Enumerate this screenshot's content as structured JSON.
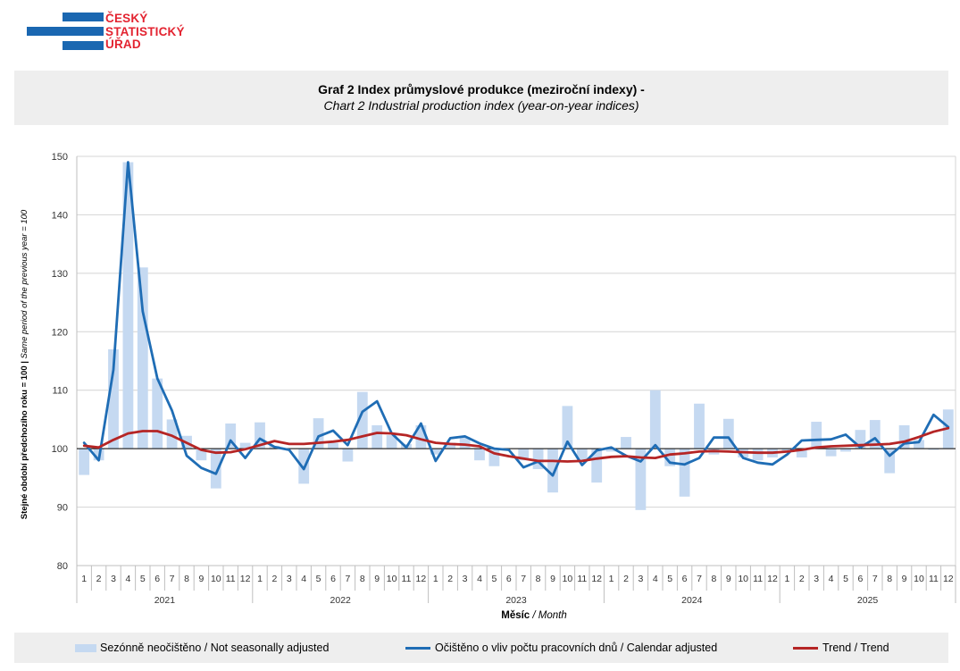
{
  "logo": {
    "line1": "ČESKÝ",
    "line2": "STATISTICKÝ",
    "line3": "ÚŘAD",
    "text_color": "#e32330",
    "bar_color": "#1a67b1"
  },
  "chart_title": "Graf 2 Index průmyslové produkce (meziroční indexy) -",
  "chart_subtitle": "Chart 2 Industrial production index (year-on-year indices)",
  "legend": {
    "bars": "Sezónně neočištěno / Not seasonally adjusted",
    "calendar": "Očištěno o vliv počtu pracovních dnů / Calendar adjusted",
    "trend": "Trend / Trend"
  },
  "chart_data": {
    "type": "bar+line",
    "title": "Graf 2 Index průmyslové produkce (meziroční indexy) -",
    "subtitle": "Chart 2 Industrial production index (year-on-year indices)",
    "ylabel_bold": "Stejné období předchozího roku = 100 |",
    "ylabel_italic": "Same period of the previous year = 100",
    "xlabel_bold": "Měsíc",
    "xlabel_italic": "/ Month",
    "ylim": [
      80,
      150
    ],
    "yticks": [
      80,
      90,
      100,
      110,
      120,
      130,
      140,
      150
    ],
    "grid": true,
    "baseline": 100,
    "years": [
      "2021",
      "2022",
      "2023",
      "2024",
      "2025"
    ],
    "months": [
      "1",
      "2",
      "3",
      "4",
      "5",
      "6",
      "7",
      "8",
      "9",
      "10",
      "11",
      "12"
    ],
    "colors": {
      "bars": "#c5d9f1",
      "calendar": "#1f6db5",
      "trend": "#b52525"
    },
    "series": [
      {
        "name": "Sezónně neočištěno / Not seasonally adjusted",
        "kind": "bar",
        "values": [
          95.5,
          98.0,
          117.0,
          149.0,
          131.0,
          112.0,
          105.0,
          102.2,
          98.0,
          93.2,
          104.3,
          101.0,
          104.5,
          100.5,
          100.0,
          94.0,
          105.2,
          101.0,
          97.8,
          109.7,
          104.0,
          102.3,
          100.8,
          104.0,
          99.0,
          101.0,
          102.0,
          98.0,
          97.0,
          100.0,
          98.0,
          96.5,
          92.5,
          107.3,
          98.0,
          94.2,
          99.5,
          102.0,
          89.5,
          110.0,
          97.0,
          91.8,
          107.7,
          99.0,
          105.1,
          98.5,
          98.0,
          98.5,
          99.5,
          98.5,
          104.6,
          98.7,
          99.5,
          103.2,
          104.9,
          95.8,
          104.0,
          101.5,
          99.8,
          106.7
        ]
      },
      {
        "name": "Očištěno o vliv počtu pracovních dnů / Calendar adjusted",
        "kind": "line",
        "values": [
          101.0,
          98.0,
          113.5,
          149.0,
          123.5,
          112.0,
          106.5,
          98.8,
          96.7,
          95.7,
          101.4,
          98.4,
          101.7,
          100.3,
          99.8,
          96.5,
          102.1,
          103.1,
          100.6,
          106.3,
          108.1,
          102.6,
          100.2,
          104.3,
          97.9,
          101.8,
          102.1,
          100.9,
          100.0,
          99.8,
          96.8,
          97.8,
          95.4,
          101.2,
          97.2,
          99.7,
          100.2,
          98.8,
          97.8,
          100.6,
          97.6,
          97.3,
          98.4,
          101.9,
          101.9,
          98.4,
          97.6,
          97.3,
          99.0,
          101.4,
          101.5,
          101.6,
          102.4,
          100.2,
          101.8,
          98.8,
          100.9,
          101.1,
          105.8,
          103.7
        ]
      },
      {
        "name": "Trend / Trend",
        "kind": "line",
        "values": [
          100.5,
          100.2,
          101.5,
          102.6,
          103.0,
          103.0,
          102.2,
          101.0,
          99.8,
          99.3,
          99.4,
          99.9,
          100.6,
          101.3,
          100.8,
          100.8,
          101.0,
          101.2,
          101.5,
          102.1,
          102.7,
          102.6,
          102.3,
          101.6,
          101.0,
          100.8,
          100.7,
          100.4,
          99.2,
          98.7,
          98.3,
          97.9,
          97.9,
          97.8,
          97.9,
          98.3,
          98.6,
          98.7,
          98.5,
          98.4,
          99.0,
          99.2,
          99.5,
          99.6,
          99.5,
          99.4,
          99.3,
          99.3,
          99.5,
          99.8,
          100.2,
          100.4,
          100.5,
          100.6,
          100.7,
          100.8,
          101.2,
          102.0,
          102.9,
          103.5
        ]
      }
    ]
  }
}
